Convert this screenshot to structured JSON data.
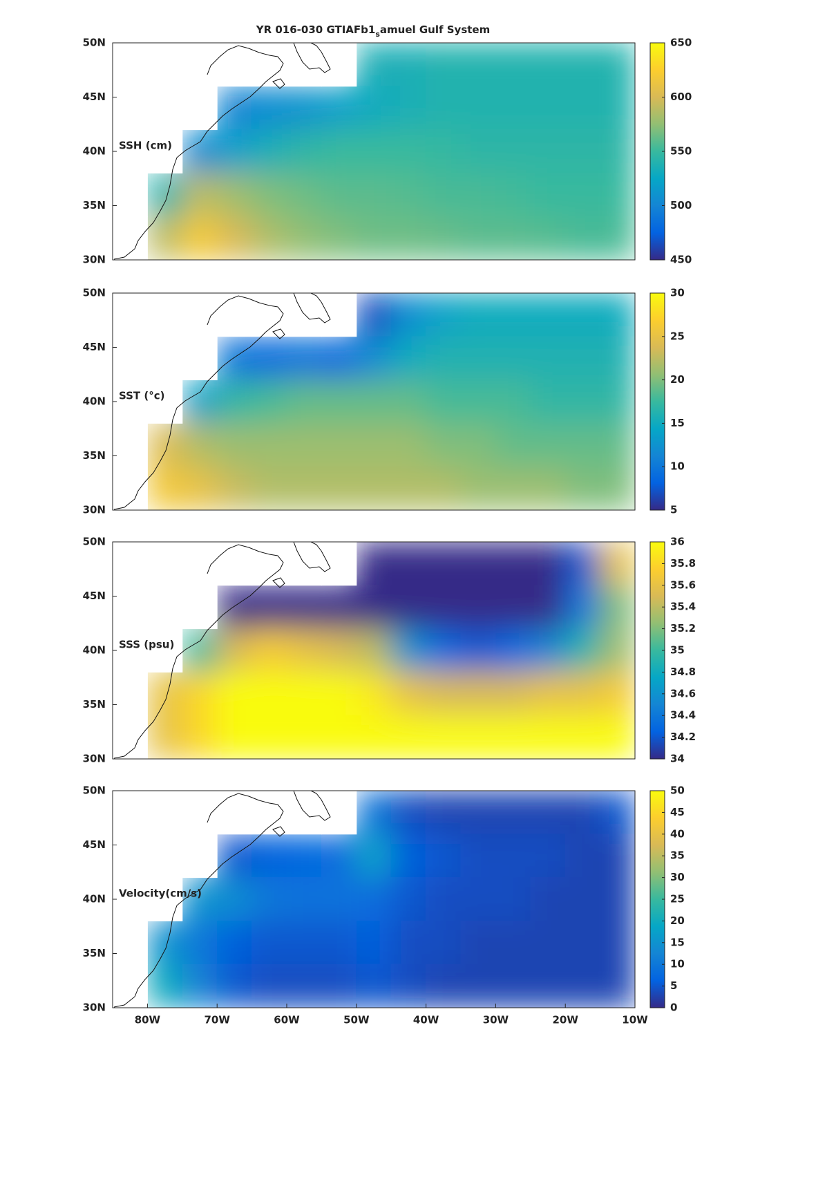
{
  "title_parts": [
    "YR 016-030 GTIAFb1",
    "s",
    "amuel Gulf System"
  ],
  "chart_data": [
    {
      "type": "heatmap",
      "label": "SSH (cm)",
      "colormap": "parula",
      "xlim": [
        -85,
        -10
      ],
      "ylim": [
        30,
        50
      ],
      "yticks": [
        {
          "value": 30,
          "label": "30N"
        },
        {
          "value": 35,
          "label": "35N"
        },
        {
          "value": 40,
          "label": "40N"
        },
        {
          "value": 45,
          "label": "45N"
        },
        {
          "value": 50,
          "label": "50N"
        }
      ],
      "lon": [
        -82.5,
        -77.5,
        -72.5,
        -67.5,
        -62.5,
        -57.5,
        -52.5,
        -47.5,
        -42.5,
        -37.5,
        -32.5,
        -27.5,
        -22.5,
        -17.5,
        -12.5
      ],
      "lat": [
        48,
        44,
        40,
        36,
        32
      ],
      "z": [
        [
          null,
          null,
          null,
          null,
          null,
          null,
          null,
          535,
          535,
          540,
          540,
          540,
          540,
          540,
          540
        ],
        [
          null,
          null,
          null,
          500,
          505,
          510,
          520,
          530,
          535,
          540,
          540,
          540,
          540,
          540,
          540
        ],
        [
          null,
          null,
          505,
          520,
          535,
          545,
          550,
          550,
          550,
          548,
          545,
          545,
          545,
          545,
          545
        ],
        [
          null,
          540,
          590,
          580,
          570,
          565,
          560,
          560,
          558,
          555,
          555,
          553,
          550,
          550,
          550
        ],
        [
          null,
          590,
          620,
          600,
          585,
          575,
          570,
          565,
          565,
          563,
          560,
          560,
          558,
          555,
          555
        ]
      ],
      "clim": [
        450,
        650
      ],
      "cticks": [
        450,
        500,
        550,
        600,
        650
      ]
    },
    {
      "type": "heatmap",
      "label": "SST (°c)",
      "colormap": "parula",
      "xlim": [
        -85,
        -10
      ],
      "ylim": [
        30,
        50
      ],
      "yticks": [
        {
          "value": 30,
          "label": "30N"
        },
        {
          "value": 35,
          "label": "35N"
        },
        {
          "value": 40,
          "label": "40N"
        },
        {
          "value": 45,
          "label": "45N"
        },
        {
          "value": 50,
          "label": "50N"
        }
      ],
      "lon": [
        -82.5,
        -77.5,
        -72.5,
        -67.5,
        -62.5,
        -57.5,
        -52.5,
        -47.5,
        -42.5,
        -37.5,
        -32.5,
        -27.5,
        -22.5,
        -17.5,
        -12.5
      ],
      "lat": [
        48,
        44,
        40,
        36,
        32
      ],
      "z": [
        [
          null,
          null,
          null,
          null,
          null,
          null,
          null,
          7,
          12,
          14,
          15,
          15,
          15,
          15,
          15
        ],
        [
          null,
          null,
          null,
          10,
          9,
          10,
          9,
          12,
          15,
          16,
          16,
          16,
          16,
          16,
          16
        ],
        [
          null,
          null,
          14,
          17,
          18,
          19,
          19,
          19,
          19,
          18,
          18,
          18,
          17,
          17,
          17
        ],
        [
          null,
          24,
          22,
          21,
          21,
          21,
          21,
          21,
          21,
          20,
          20,
          19,
          19,
          19,
          19
        ],
        [
          null,
          26,
          25,
          23,
          22,
          22,
          22,
          22,
          22,
          22,
          21,
          21,
          21,
          20,
          20
        ]
      ],
      "clim": [
        5,
        30
      ],
      "cticks": [
        5,
        10,
        15,
        20,
        25,
        30
      ]
    },
    {
      "type": "heatmap",
      "label": "SSS (psu)",
      "colormap": "parula",
      "xlim": [
        -85,
        -10
      ],
      "ylim": [
        30,
        50
      ],
      "yticks": [
        {
          "value": 30,
          "label": "30N"
        },
        {
          "value": 35,
          "label": "35N"
        },
        {
          "value": 40,
          "label": "40N"
        },
        {
          "value": 45,
          "label": "45N"
        },
        {
          "value": 50,
          "label": "50N"
        }
      ],
      "lon": [
        -82.5,
        -77.5,
        -72.5,
        -67.5,
        -62.5,
        -57.5,
        -52.5,
        -47.5,
        -42.5,
        -37.5,
        -32.5,
        -27.5,
        -22.5,
        -17.5,
        -12.5
      ],
      "lat": [
        48,
        44,
        40,
        36,
        32
      ],
      "z": [
        [
          null,
          null,
          null,
          null,
          null,
          null,
          null,
          34.0,
          34.0,
          34.0,
          34.0,
          34.0,
          34.0,
          34.2,
          35.6
        ],
        [
          null,
          null,
          null,
          34.0,
          34.0,
          34.0,
          34.0,
          34.0,
          34.0,
          34.0,
          34.0,
          34.0,
          34.0,
          34.4,
          35.2
        ],
        [
          null,
          null,
          35.0,
          35.5,
          35.7,
          35.6,
          35.5,
          35.4,
          34.6,
          34.3,
          34.2,
          34.3,
          34.5,
          34.9,
          35.3
        ],
        [
          null,
          35.6,
          35.8,
          36.0,
          36.0,
          36.0,
          36.0,
          35.9,
          35.6,
          35.5,
          35.5,
          35.5,
          35.6,
          35.6,
          35.7
        ],
        [
          null,
          35.6,
          35.8,
          36.0,
          36.0,
          36.0,
          36.0,
          36.0,
          36.0,
          36.0,
          36.0,
          36.0,
          36.0,
          36.0,
          36.0
        ]
      ],
      "clim": [
        34,
        36
      ],
      "cticks": [
        34,
        34.2,
        34.4,
        34.6,
        34.8,
        35,
        35.2,
        35.4,
        35.6,
        35.8,
        36
      ]
    },
    {
      "type": "heatmap",
      "label": "Velocity(cm/s)",
      "colormap": "parula",
      "xlim": [
        -85,
        -10
      ],
      "ylim": [
        30,
        50
      ],
      "xticks": [
        {
          "value": -80,
          "label": "80W"
        },
        {
          "value": -70,
          "label": "70W"
        },
        {
          "value": -60,
          "label": "60W"
        },
        {
          "value": -50,
          "label": "50W"
        },
        {
          "value": -40,
          "label": "40W"
        },
        {
          "value": -30,
          "label": "30W"
        },
        {
          "value": -20,
          "label": "20W"
        },
        {
          "value": -10,
          "label": "10W"
        }
      ],
      "yticks": [
        {
          "value": 30,
          "label": "30N"
        },
        {
          "value": 35,
          "label": "35N"
        },
        {
          "value": 40,
          "label": "40N"
        },
        {
          "value": 45,
          "label": "45N"
        },
        {
          "value": 50,
          "label": "50N"
        }
      ],
      "lon": [
        -82.5,
        -77.5,
        -72.5,
        -67.5,
        -62.5,
        -57.5,
        -52.5,
        -47.5,
        -42.5,
        -37.5,
        -32.5,
        -27.5,
        -22.5,
        -17.5,
        -12.5
      ],
      "lat": [
        48,
        44,
        40,
        36,
        32
      ],
      "z": [
        [
          null,
          null,
          null,
          null,
          null,
          null,
          null,
          10,
          4,
          3,
          3,
          3,
          3,
          3,
          5
        ],
        [
          null,
          null,
          null,
          5,
          6,
          7,
          8,
          18,
          6,
          5,
          4,
          4,
          4,
          3,
          3
        ],
        [
          null,
          null,
          15,
          14,
          10,
          9,
          9,
          8,
          5,
          4,
          4,
          4,
          3,
          3,
          3
        ],
        [
          null,
          15,
          10,
          6,
          5,
          5,
          5,
          6,
          4,
          4,
          3,
          3,
          3,
          3,
          3
        ],
        [
          null,
          20,
          12,
          5,
          4,
          4,
          4,
          5,
          4,
          3,
          3,
          3,
          3,
          3,
          3
        ]
      ],
      "clim": [
        0,
        50
      ],
      "cticks": [
        0,
        5,
        10,
        15,
        20,
        25,
        30,
        35,
        40,
        45,
        50
      ]
    }
  ]
}
